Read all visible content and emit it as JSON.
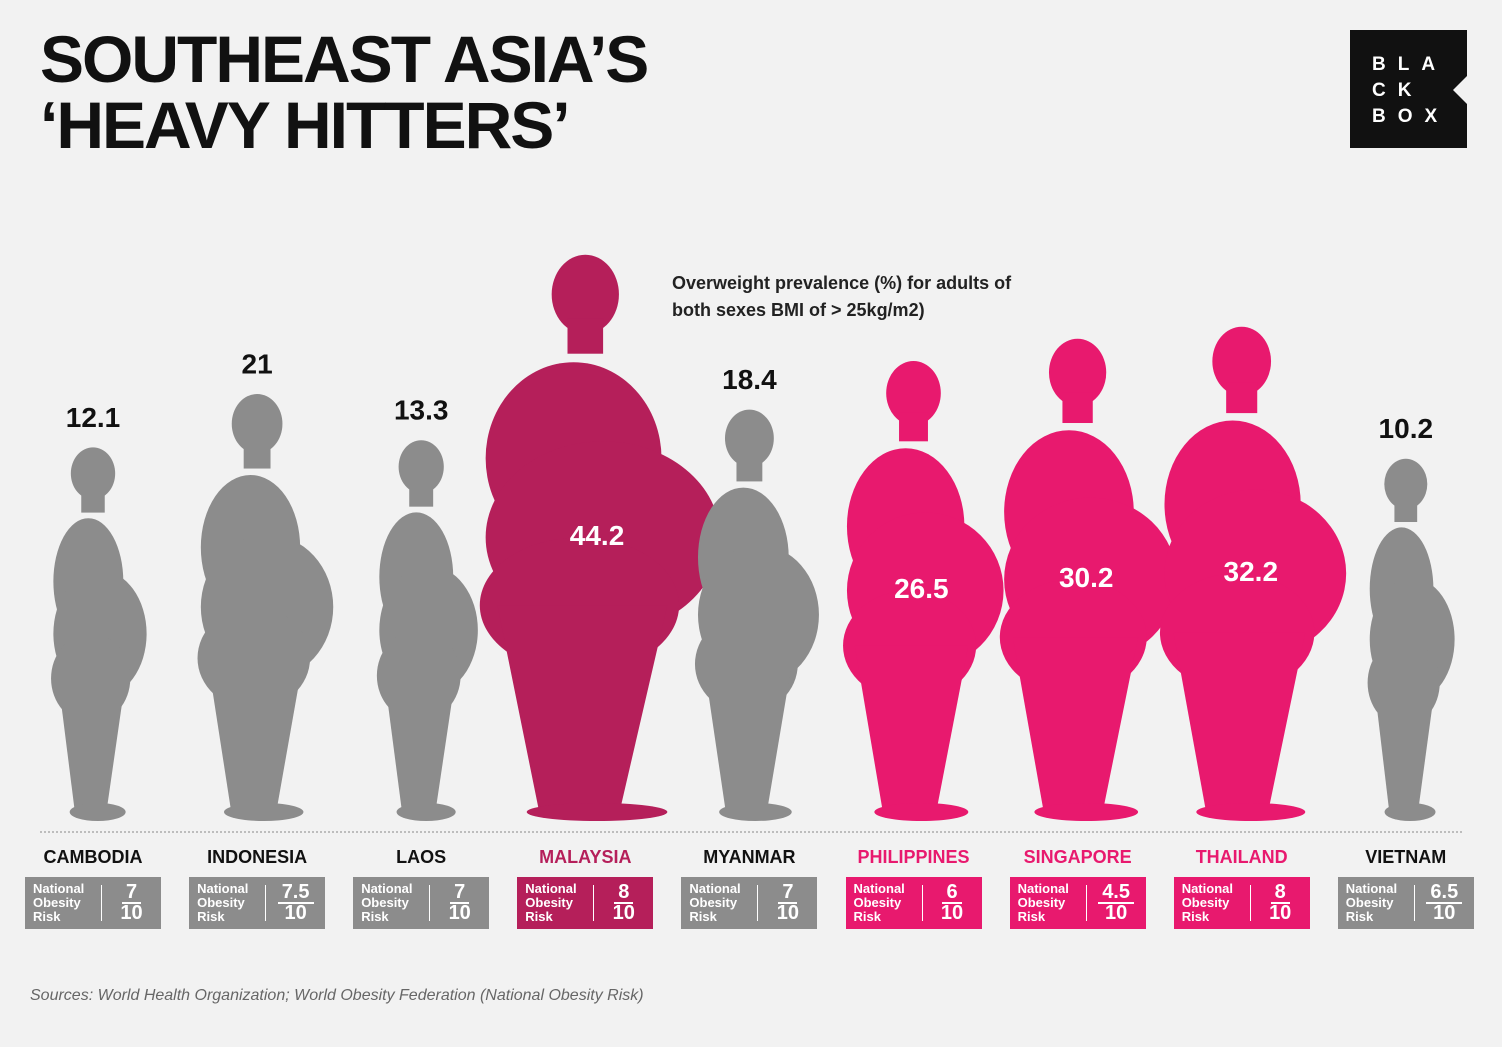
{
  "title": "SOUTHEAST ASIA’S ‘HEAVY HITTERS’",
  "logo": [
    "BLA",
    "CK",
    "BOX"
  ],
  "chart_data": {
    "type": "pictogram",
    "annotation": "Overweight prevalence (%) for adults of both sexes BMI of > 25kg/m2)",
    "categories": [
      "CAMBODIA",
      "INDONESIA",
      "LAOS",
      "MALAYSIA",
      "MYANMAR",
      "PHILIPPINES",
      "SINGAPORE",
      "THAILAND",
      "VIETNAM"
    ],
    "values": [
      12.1,
      21,
      13.3,
      44.2,
      18.4,
      26.5,
      30.2,
      32.2,
      10.2
    ],
    "color": "#8c8c8c",
    "colors": [
      "#8c8c8c",
      "#8c8c8c",
      "#8c8c8c",
      "#b51f5a",
      "#8c8c8c",
      "#e8196e",
      "#e8196e",
      "#e8196e",
      "#8c8c8c"
    ],
    "risk_label": "National Obesity Risk",
    "risk_scores": [
      7,
      7.5,
      7,
      8,
      7,
      6,
      4.5,
      8,
      6.5
    ],
    "risk_max": 10
  },
  "source": "Sources: World Health Organization; World Obesity Federation (National Obesity Risk)"
}
